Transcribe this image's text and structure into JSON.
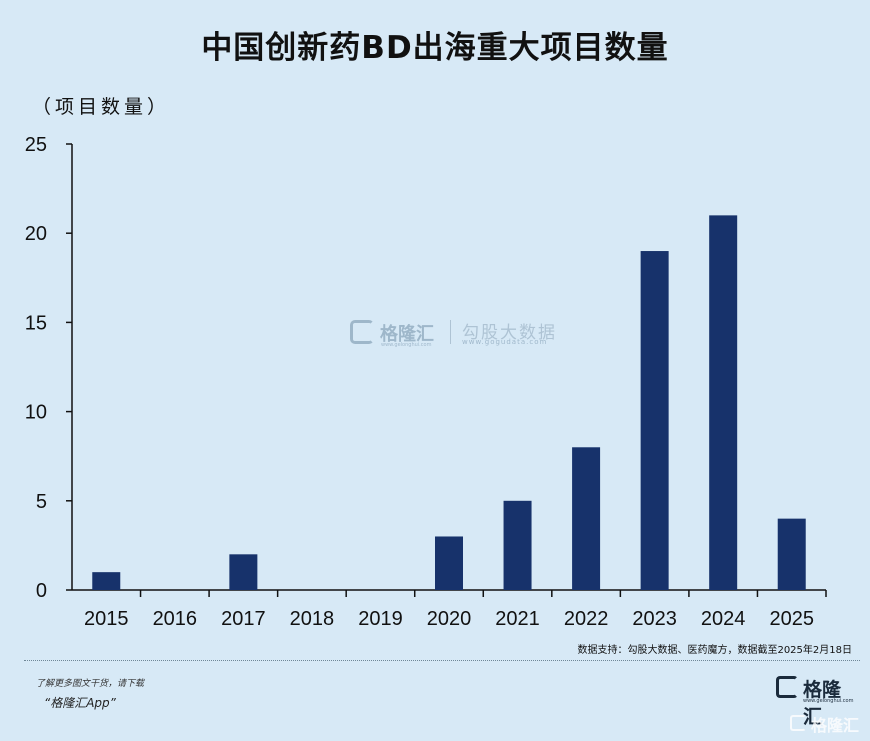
{
  "title": "中国创新药BD出海重大项目数量",
  "unit_label": "（项目数量）",
  "source": "数据支持：勾股大数据、医药魔方，数据截至2025年2月18日",
  "footer": {
    "promo_line": "了解更多图文干货，请下载",
    "promo_app": "“格隆汇App”"
  },
  "brand": {
    "name": "格隆汇",
    "url": "www.gelonghui.com"
  },
  "watermark": {
    "name": "格隆汇",
    "name2": "勾股大数据",
    "url1": "www.gelonghui.com",
    "url2": "www.gogudata.com",
    "corner": "格隆汇"
  },
  "colors": {
    "background": "#d7e9f6",
    "bar": "#17326b",
    "axis": "#111111"
  },
  "chart_data": {
    "type": "bar",
    "title": "中国创新药BD出海重大项目数量",
    "ylabel": "（项目数量）",
    "xlabel": "",
    "categories": [
      "2015",
      "2016",
      "2017",
      "2018",
      "2019",
      "2020",
      "2021",
      "2022",
      "2023",
      "2024",
      "2025"
    ],
    "values": [
      1,
      0,
      2,
      0,
      0,
      3,
      5,
      8,
      19,
      21,
      4
    ],
    "ylim": [
      0,
      25
    ],
    "yticks": [
      "0",
      "5",
      "10",
      "15",
      "20",
      "25"
    ],
    "grid": false,
    "legend": "none"
  }
}
